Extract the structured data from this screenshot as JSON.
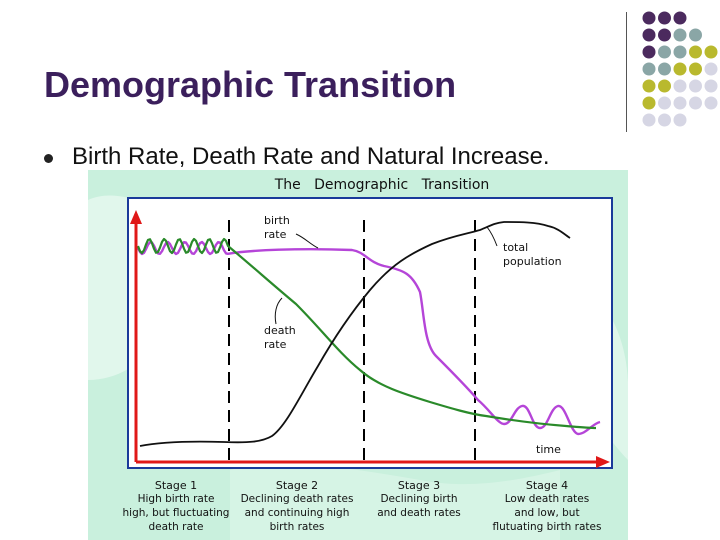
{
  "slide": {
    "title": "Demographic Transition",
    "bullet": "Birth Rate, Death Rate and Natural Increase."
  },
  "colors": {
    "title": "#3b1f5c",
    "dot_purple": "#4b2a5e",
    "dot_teal": "#8aa6a6",
    "dot_olive": "#b9b92e",
    "dot_light": "#d6d6e4",
    "birth_rate": "#b545d8",
    "death_rate": "#2a8a2a",
    "population": "#111111",
    "axis": "#e01818",
    "frame": "#1a3a9a",
    "map_bg": "#c9f0dd"
  },
  "chart_data": {
    "type": "line",
    "title": "The   Demographic   Transition",
    "xlabel": "time",
    "ylabel": "",
    "stages": [
      {
        "label": "Stage 1",
        "lines": [
          "High birth rate",
          "high,  but  fluctuating",
          "death rate"
        ]
      },
      {
        "label": "Stage 2",
        "lines": [
          "Declining  death  rates",
          "and  continuing  high",
          "birth   rates"
        ]
      },
      {
        "label": "Stage 3",
        "lines": [
          "Declining birth",
          "and death rates"
        ]
      },
      {
        "label": "Stage 4",
        "lines": [
          "Low death rates",
          "and  low,  but",
          "flutuating   birth   rates"
        ]
      }
    ],
    "series": [
      {
        "name": "birth rate",
        "label_lines": [
          "birth",
          "rate"
        ]
      },
      {
        "name": "death rate",
        "label_lines": [
          "death",
          "rate"
        ]
      },
      {
        "name": "total population",
        "label_lines": [
          "total",
          "population"
        ]
      }
    ]
  }
}
